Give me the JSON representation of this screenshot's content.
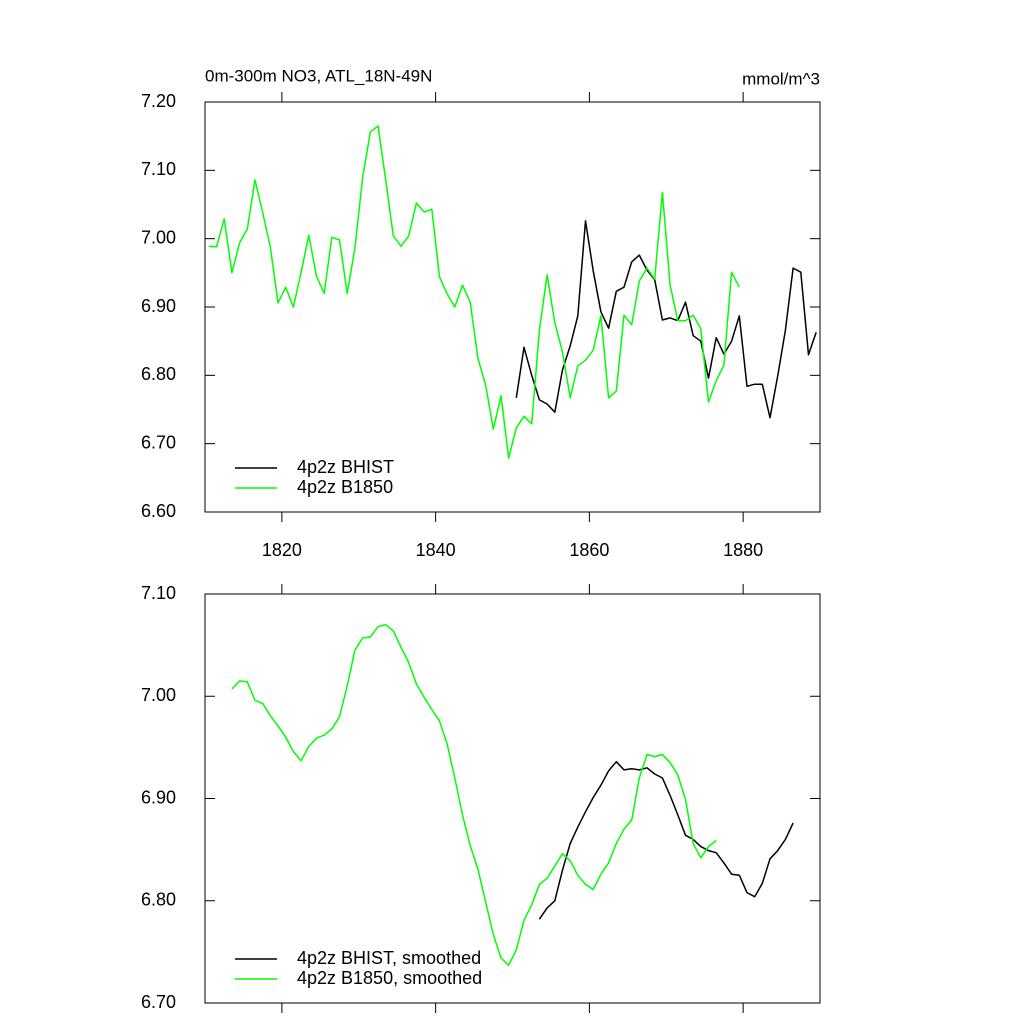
{
  "chart_data": [
    {
      "type": "line",
      "title": "0m-300m NO3, ATL_18N-49N",
      "subtitle": "mmol/m^3",
      "xlim": [
        1810,
        1890
      ],
      "xticks": [
        1820,
        1840,
        1860,
        1880
      ],
      "xtick_labels": true,
      "ylim": [
        6.6,
        7.2
      ],
      "yticks": [
        {
          "value": 6.6,
          "label": "6.60"
        },
        {
          "value": 6.7,
          "label": "6.70"
        },
        {
          "value": 6.8,
          "label": "6.80"
        },
        {
          "value": 6.9,
          "label": "6.90"
        },
        {
          "value": 7.0,
          "label": "7.00"
        },
        {
          "value": 7.1,
          "label": "7.10"
        },
        {
          "value": 7.2,
          "label": "7.20"
        }
      ],
      "legend": "lower left",
      "series": [
        {
          "name": "4p2z BHIST",
          "color": "#000000",
          "x": [
            1850.5,
            1851.5,
            1852.5,
            1853.5,
            1854.5,
            1855.5,
            1856.5,
            1857.5,
            1858.5,
            1859.5,
            1860.5,
            1861.5,
            1862.5,
            1863.5,
            1864.5,
            1865.5,
            1866.5,
            1867.5,
            1868.5,
            1869.5,
            1870.5,
            1871.5,
            1872.5,
            1873.5,
            1874.5,
            1875.5,
            1876.5,
            1877.5,
            1878.5,
            1879.5,
            1880.5,
            1881.5,
            1882.5,
            1883.5,
            1884.5,
            1885.5,
            1886.5,
            1887.5,
            1888.5,
            1889.5
          ],
          "values": [
            6.767,
            6.841,
            6.8,
            6.764,
            6.758,
            6.746,
            6.808,
            6.843,
            6.887,
            7.026,
            6.953,
            6.893,
            6.869,
            6.923,
            6.929,
            6.966,
            6.976,
            6.954,
            6.94,
            6.881,
            6.884,
            6.88,
            6.907,
            6.858,
            6.85,
            6.796,
            6.855,
            6.831,
            6.85,
            6.887,
            6.784,
            6.787,
            6.787,
            6.738,
            6.799,
            6.866,
            6.957,
            6.951,
            6.83,
            6.863
          ]
        },
        {
          "name": "4p2z B1850",
          "color": "#00ff00",
          "x": [
            1810.5,
            1811.5,
            1812.5,
            1813.5,
            1814.5,
            1815.5,
            1816.5,
            1817.5,
            1818.5,
            1819.5,
            1820.5,
            1821.5,
            1822.5,
            1823.5,
            1824.5,
            1825.5,
            1826.5,
            1827.5,
            1828.5,
            1829.5,
            1830.5,
            1831.5,
            1832.5,
            1833.5,
            1834.5,
            1835.5,
            1836.5,
            1837.5,
            1838.5,
            1839.5,
            1840.5,
            1841.5,
            1842.5,
            1843.5,
            1844.5,
            1845.5,
            1846.5,
            1847.5,
            1848.5,
            1849.5,
            1850.5,
            1851.5,
            1852.5,
            1853.5,
            1854.5,
            1855.5,
            1856.5,
            1857.5,
            1858.5,
            1859.5,
            1860.5,
            1861.5,
            1862.5,
            1863.5,
            1864.5,
            1865.5,
            1866.5,
            1867.5,
            1868.5,
            1869.5,
            1870.5,
            1871.5,
            1872.5,
            1873.5,
            1874.5,
            1875.5,
            1876.5,
            1877.5,
            1878.5,
            1879.5
          ],
          "values": [
            6.989,
            6.988,
            7.029,
            6.95,
            6.994,
            7.014,
            7.086,
            7.038,
            6.988,
            6.906,
            6.929,
            6.9,
            6.951,
            7.005,
            6.945,
            6.92,
            7.002,
            6.998,
            6.92,
            6.986,
            7.089,
            7.156,
            7.165,
            7.086,
            7.004,
            6.989,
            7.004,
            7.052,
            7.039,
            7.043,
            6.944,
            6.919,
            6.9,
            6.932,
            6.907,
            6.825,
            6.786,
            6.721,
            6.77,
            6.679,
            6.723,
            6.74,
            6.729,
            6.866,
            6.947,
            6.877,
            6.834,
            6.767,
            6.814,
            6.822,
            6.837,
            6.887,
            6.767,
            6.777,
            6.888,
            6.874,
            6.938,
            6.957,
            6.941,
            7.068,
            6.932,
            6.88,
            6.88,
            6.888,
            6.868,
            6.761,
            6.792,
            6.815,
            6.951,
            6.929
          ]
        }
      ]
    },
    {
      "type": "line",
      "xlim": [
        1810,
        1890
      ],
      "xticks": [
        1820,
        1840,
        1860,
        1880
      ],
      "xtick_labels": false,
      "ylim": [
        6.7,
        7.1
      ],
      "yticks": [
        {
          "value": 6.7,
          "label": "6.70"
        },
        {
          "value": 6.8,
          "label": "6.80"
        },
        {
          "value": 6.9,
          "label": "6.90"
        },
        {
          "value": 7.0,
          "label": "7.00"
        },
        {
          "value": 7.1,
          "label": "7.10"
        }
      ],
      "legend": "lower left",
      "series": [
        {
          "name": "4p2z BHIST, smoothed",
          "color": "#000000",
          "x": [
            1853.5,
            1854.5,
            1855.5,
            1856.5,
            1857.5,
            1858.5,
            1859.5,
            1860.5,
            1861.5,
            1862.5,
            1863.5,
            1864.5,
            1865.5,
            1866.5,
            1867.5,
            1868.5,
            1869.5,
            1870.5,
            1871.5,
            1872.5,
            1873.5,
            1874.5,
            1875.5,
            1876.5,
            1877.5,
            1878.5,
            1879.5,
            1880.5,
            1881.5,
            1882.5,
            1883.5,
            1884.5,
            1885.5,
            1886.5
          ],
          "values": [
            6.782,
            6.793,
            6.8,
            6.83,
            6.856,
            6.872,
            6.887,
            6.901,
            6.913,
            6.927,
            6.936,
            6.928,
            6.929,
            6.928,
            6.93,
            6.924,
            6.92,
            6.903,
            6.884,
            6.864,
            6.86,
            6.853,
            6.849,
            6.847,
            6.837,
            6.826,
            6.825,
            6.808,
            6.804,
            6.817,
            6.841,
            6.849,
            6.86,
            6.876
          ]
        },
        {
          "name": "4p2z B1850, smoothed",
          "color": "#00ff00",
          "x": [
            1813.5,
            1814.5,
            1815.5,
            1816.5,
            1817.5,
            1818.5,
            1819.5,
            1820.5,
            1821.5,
            1822.5,
            1823.5,
            1824.5,
            1825.5,
            1826.5,
            1827.5,
            1828.5,
            1829.5,
            1830.5,
            1831.5,
            1832.5,
            1833.5,
            1834.5,
            1835.5,
            1836.5,
            1837.5,
            1838.5,
            1839.5,
            1840.5,
            1841.5,
            1842.5,
            1843.5,
            1844.5,
            1845.5,
            1846.5,
            1847.5,
            1848.5,
            1849.5,
            1850.5,
            1851.5,
            1852.5,
            1853.5,
            1854.5,
            1855.5,
            1856.5,
            1857.5,
            1858.5,
            1859.5,
            1860.5,
            1861.5,
            1862.5,
            1863.5,
            1864.5,
            1865.5,
            1866.5,
            1867.5,
            1868.5,
            1869.5,
            1870.5,
            1871.5,
            1872.5,
            1873.5,
            1874.5,
            1875.5,
            1876.5
          ],
          "values": [
            7.007,
            7.015,
            7.014,
            6.996,
            6.993,
            6.981,
            6.971,
            6.96,
            6.946,
            6.937,
            6.951,
            6.959,
            6.962,
            6.968,
            6.98,
            7.01,
            7.045,
            7.057,
            7.058,
            7.068,
            7.07,
            7.064,
            7.048,
            7.033,
            7.012,
            6.999,
            6.987,
            6.976,
            6.953,
            6.92,
            6.884,
            6.854,
            6.831,
            6.799,
            6.767,
            6.744,
            6.737,
            6.752,
            6.781,
            6.796,
            6.816,
            6.822,
            6.834,
            6.846,
            6.839,
            6.825,
            6.816,
            6.811,
            6.826,
            6.837,
            6.856,
            6.87,
            6.879,
            6.92,
            6.943,
            6.941,
            6.943,
            6.935,
            6.923,
            6.899,
            6.856,
            6.842,
            6.853,
            6.859
          ]
        }
      ]
    }
  ]
}
